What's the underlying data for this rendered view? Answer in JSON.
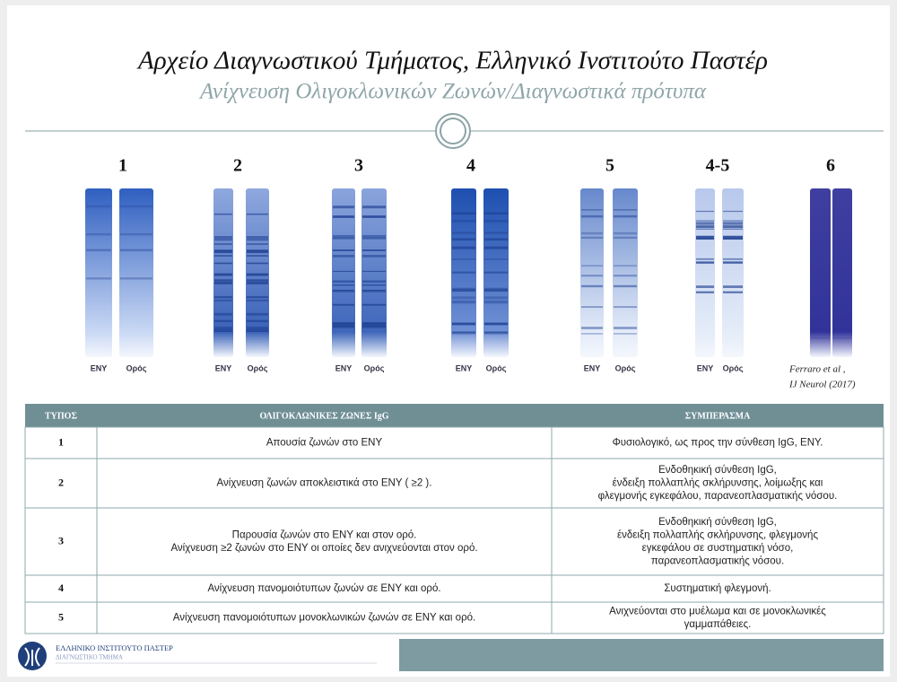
{
  "header": {
    "title": "Αρχείο Διαγνωστικού  Τμήματος, Ελληνικό  Ινστιτούτο Παστέρ",
    "subtitle": "Ανίχνευση Ολιγοκλωνικών Ζωνών/Διαγνωστικά πρότυπα"
  },
  "gels": [
    {
      "label": "1",
      "lanes": [
        "ENY",
        "Ορός"
      ]
    },
    {
      "label": "2",
      "lanes": [
        "ENY",
        "Ορός"
      ]
    },
    {
      "label": "3",
      "lanes": [
        "ENY",
        "Ορός"
      ]
    },
    {
      "label": "4",
      "lanes": [
        "ENY",
        "Ορός"
      ]
    },
    {
      "label": "5",
      "lanes": [
        "ENY",
        "Ορός"
      ]
    },
    {
      "label": "4-5",
      "lanes": [
        "ENY",
        "Ορός"
      ]
    },
    {
      "label": "6"
    }
  ],
  "citation": [
    "Ferraro et al ,",
    "IJ Neurol (2017)"
  ],
  "table": {
    "columns": [
      "ΤΥΠΟΣ",
      "ΟΛΙΓΟΚΛΩΝΙΚΕΣ ΖΩΝΕΣ IgG",
      "ΣΥΜΠΕΡΑΣΜΑ"
    ],
    "rows": [
      [
        "1",
        [
          "Απουσία ζωνών στο ΕΝΥ"
        ],
        [
          "Φυσιολογικό, ως προς την σύνθεση IgG, ΕΝΥ."
        ]
      ],
      [
        "2",
        [
          "Ανίχνευση ζωνών αποκλειστικά στο ΕΝΥ ( ≥2 )."
        ],
        [
          "Ενδοθηκική σύνθεση IgG,",
          "ένδειξη πολλαπλής σκλήρυνσης, λοίμωξης και",
          "φλεγμονής εγκεφάλου, παρανεοπλασματικής νόσου."
        ]
      ],
      [
        "3",
        [
          "Παρουσία ζωνών στο ΕΝΥ και στον ορό.",
          "Ανίχνευση ≥2 ζωνών στο ΕΝΥ οι οποίες δεν ανιχνεύονται στον ορό."
        ],
        [
          "Ενδοθηκική σύνθεση IgG,",
          "ένδειξη πολλαπλής σκλήρυνσης, φλεγμονής",
          "εγκεφάλου σε συστηματική νόσο,",
          "παρανεοπλασματικής νόσου."
        ]
      ],
      [
        "4",
        [
          "Ανίχνευση πανομοιότυπων ζωνών σε ΕΝΥ και ορό."
        ],
        [
          "Συστηματική φλεγμονή."
        ]
      ],
      [
        "5",
        [
          "Ανίχνευση πανομοιότυπων μονοκλωνικών ζωνών σε ΕΝΥ και ορό."
        ],
        [
          "Ανιχνεύονται στο μυέλωμα και σε μονοκλωνικές",
          "γαμμαπάθειες."
        ]
      ]
    ]
  },
  "footer": {
    "organization": "ΕΛΛΗΝΙΚΟ ΙΝΣΤΙΤΟΥΤΟ ΠΑΣΤΕΡ",
    "department": "ΔΙΑΓΝΩΣΤΙΚΟ ΤΜΗΜΑ"
  }
}
